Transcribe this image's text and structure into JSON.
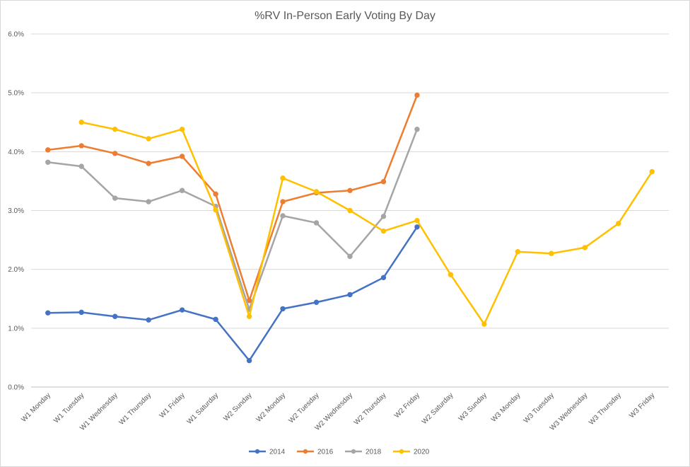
{
  "chart_data": {
    "type": "line",
    "title": "%RV In-Person Early Voting By Day",
    "xlabel": "",
    "ylabel": "",
    "ylim": [
      0,
      6
    ],
    "yticks": [
      "0.0%",
      "1.0%",
      "2.0%",
      "3.0%",
      "4.0%",
      "5.0%",
      "6.0%"
    ],
    "grid": true,
    "legend_position": "bottom",
    "categories": [
      "W1 Monday",
      "W1 Tuesday",
      "W1 Wednesday",
      "W1 Thursday",
      "W1 Friday",
      "W1 Saturday",
      "W2 Sunday",
      "W2 Monday",
      "W2 Tuesday",
      "W2 Wednesday",
      "W2 Thursday",
      "W2 Friday",
      "W2 Saturday",
      "W3 Sunday",
      "W3 Monday",
      "W3 Tuesday",
      "W3 Wednesday",
      "W3 Thursday",
      "W3 Friday"
    ],
    "series": [
      {
        "name": "2014",
        "color": "#4472C4",
        "values": [
          1.26,
          1.27,
          1.2,
          1.14,
          1.31,
          1.15,
          0.45,
          1.33,
          1.44,
          1.57,
          1.86,
          2.72,
          null,
          null,
          null,
          null,
          null,
          null,
          null
        ]
      },
      {
        "name": "2016",
        "color": "#ED7D31",
        "values": [
          4.03,
          4.1,
          3.97,
          3.8,
          3.92,
          3.28,
          1.47,
          3.15,
          3.3,
          3.34,
          3.49,
          4.96,
          null,
          null,
          null,
          null,
          null,
          null,
          null
        ]
      },
      {
        "name": "2018",
        "color": "#A5A5A5",
        "values": [
          3.82,
          3.75,
          3.21,
          3.15,
          3.34,
          3.07,
          1.32,
          2.91,
          2.79,
          2.22,
          2.9,
          4.38,
          null,
          null,
          null,
          null,
          null,
          null,
          null
        ]
      },
      {
        "name": "2020",
        "color": "#FFC000",
        "values": [
          null,
          4.5,
          4.38,
          4.22,
          4.38,
          3.01,
          1.2,
          3.55,
          3.32,
          3.0,
          2.65,
          2.83,
          1.91,
          1.07,
          2.3,
          2.27,
          2.37,
          2.78,
          3.66
        ]
      }
    ]
  }
}
